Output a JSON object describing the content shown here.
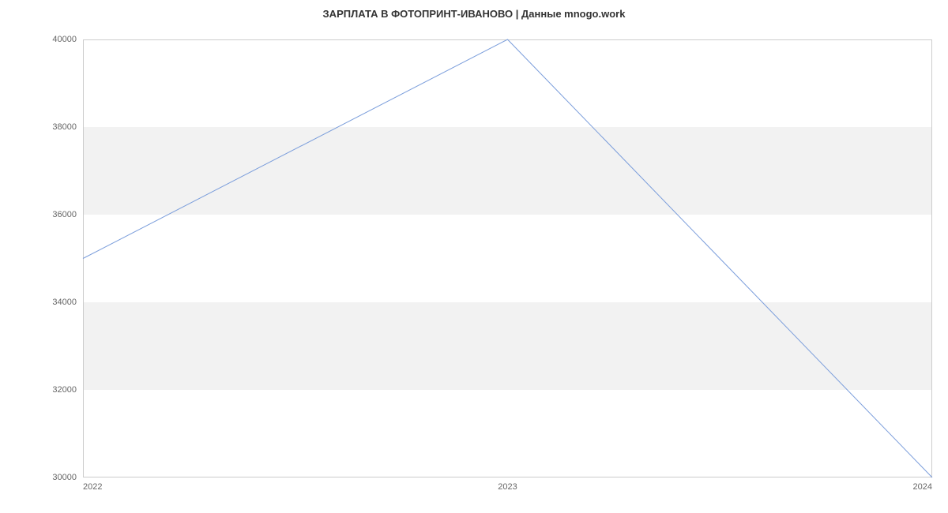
{
  "chart": {
    "type": "line",
    "title": "ЗАРПЛАТА В ФОТОПРИНТ-ИВАНОВО | Данные mnogo.work",
    "title_fontsize": 13,
    "title_color": "#333333",
    "background_color": "#ffffff",
    "plot_border_color": "#cccccc",
    "grid_band_color": "#f2f2f2",
    "line_color": "#7a9ddb",
    "line_width": 1,
    "axis_label_color": "#666666",
    "axis_label_fontsize": 11,
    "x": {
      "ticks": [
        2022,
        2023,
        2024
      ],
      "min": 2022,
      "max": 2024
    },
    "y": {
      "ticks": [
        30000,
        32000,
        34000,
        36000,
        38000,
        40000
      ],
      "min": 30000,
      "max": 40000,
      "band_ranges": [
        [
          32000,
          34000
        ],
        [
          36000,
          38000
        ]
      ]
    },
    "series": [
      {
        "x": 2022,
        "y": 35000
      },
      {
        "x": 2023,
        "y": 40000
      },
      {
        "x": 2024,
        "y": 30000
      }
    ]
  }
}
